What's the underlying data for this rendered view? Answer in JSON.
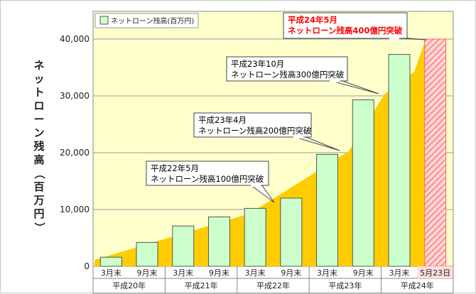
{
  "chart_data": {
    "type": "bar",
    "ylabel": "ネットローン残高（百万円）",
    "ylim": [
      0,
      40000
    ],
    "yticks": [
      "0",
      "10,000",
      "20,000",
      "30,000",
      "40,000"
    ],
    "categories": [
      "3月末",
      "9月末",
      "3月末",
      "9月末",
      "3月末",
      "9月末",
      "3月末",
      "9月末",
      "3月末",
      "5月23日"
    ],
    "groups": [
      {
        "label": "平成20年",
        "span": 2
      },
      {
        "label": "平成21年",
        "span": 2
      },
      {
        "label": "平成22年",
        "span": 2
      },
      {
        "label": "平成23年",
        "span": 2
      },
      {
        "label": "平成24年",
        "span": 2
      }
    ],
    "series": [
      {
        "name": "ネットローン残高(百万円)",
        "values": [
          1600,
          4200,
          7100,
          8700,
          10200,
          12000,
          19700,
          29300,
          37300,
          40000
        ],
        "color": "#ccffcc"
      }
    ],
    "highlight": {
      "index": 9,
      "color": "#ff6666"
    },
    "area": {
      "color": "#ffcc00",
      "values": [
        0,
        0,
        0,
        0,
        0,
        0,
        0,
        0,
        0,
        40000
      ]
    },
    "plot_background": "#ffffcc",
    "grid": true,
    "legend_position": "top-left",
    "annotations": [
      {
        "lines": [
          "平成22年5月",
          "ネットローン残高100億円突破"
        ],
        "color": "#000000"
      },
      {
        "lines": [
          "平成23年4月",
          "ネットローン残高200億円突破"
        ],
        "color": "#000000"
      },
      {
        "lines": [
          "平成23年10月",
          "ネットローン残高300億円突破"
        ],
        "color": "#000000"
      },
      {
        "lines": [
          "平成24年5月",
          "ネットローン残高400億円突破"
        ],
        "color": "#ff0000"
      }
    ]
  }
}
